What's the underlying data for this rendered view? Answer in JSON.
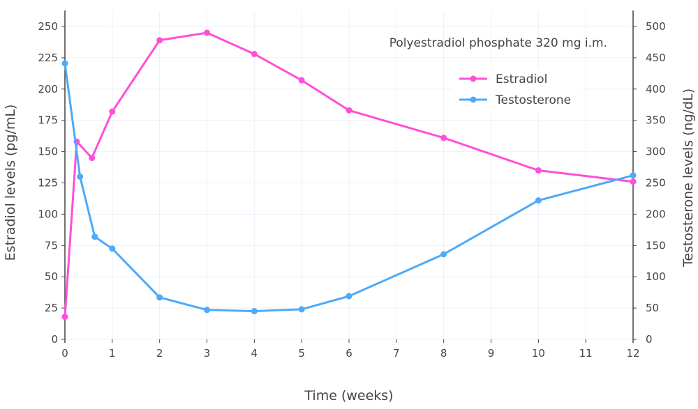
{
  "chart_data": {
    "type": "line",
    "annotation": "Polyestradiol phosphate 320 mg i.m.",
    "xlabel": "Time (weeks)",
    "ylabel_left": "Estradiol levels (pg/mL)",
    "ylabel_right": "Testosterone levels (ng/dL)",
    "xlim": [
      0,
      12
    ],
    "ylim_left": [
      0,
      250
    ],
    "ylim_right": [
      0,
      500
    ],
    "x_ticks": [
      0,
      1,
      2,
      3,
      4,
      5,
      6,
      7,
      8,
      9,
      10,
      11,
      12
    ],
    "y_ticks_left": [
      0,
      25,
      50,
      75,
      100,
      125,
      150,
      175,
      200,
      225,
      250
    ],
    "y_ticks_right": [
      0,
      50,
      100,
      150,
      200,
      250,
      300,
      350,
      400,
      450,
      500
    ],
    "grid": true,
    "legend_placement": "top-right",
    "series": [
      {
        "name": "Estradiol",
        "axis": "left",
        "color": "#ff4fd8",
        "x": [
          0,
          0.25,
          0.57,
          1,
          2,
          3,
          4,
          5,
          6,
          8,
          10,
          12
        ],
        "y": [
          18,
          158,
          145,
          182,
          239,
          245,
          228,
          207,
          183,
          161,
          135,
          126
        ]
      },
      {
        "name": "Testosterone",
        "axis": "right",
        "color": "#4daaf8",
        "x": [
          0,
          0.32,
          0.63,
          1,
          2,
          3,
          4,
          5,
          6,
          8,
          10,
          12
        ],
        "y": [
          441,
          260,
          164,
          145,
          67,
          47,
          45,
          48,
          69,
          136,
          222,
          262
        ]
      }
    ]
  }
}
